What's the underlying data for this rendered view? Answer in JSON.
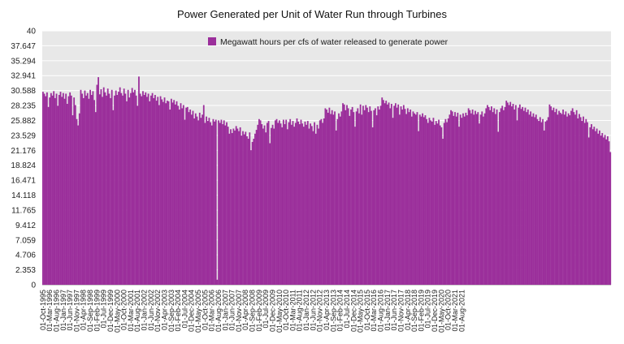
{
  "chart_data": {
    "type": "bar",
    "title": "Power Generated per Unit of Water Run through Turbines",
    "legend": {
      "label": "Megawatt hours per cfs of water released to generate power",
      "placement": "top-center"
    },
    "colors": {
      "bar": "#9b2f9b",
      "plot_background": "#e8e8e8",
      "grid": "#ffffff"
    },
    "grid": true,
    "ylim": [
      0,
      40
    ],
    "yticks": [
      "0",
      "2.353",
      "4.706",
      "7.059",
      "9.412",
      "11.765",
      "14.118",
      "16.471",
      "18.824",
      "21.176",
      "23.529",
      "25.882",
      "28.235",
      "30.588",
      "32.941",
      "35.294",
      "37.647",
      "40"
    ],
    "xticks": [
      "01-Oct-1995",
      "01-Mar-1996",
      "01-Aug-1996",
      "01-Jan-1997",
      "01-Jun-1997",
      "01-Nov-1997",
      "01-Apr-1998",
      "01-Sep-1998",
      "01-Feb-1999",
      "01-Jul-1999",
      "01-Dec-1999",
      "01-May-2000",
      "01-Oct-2000",
      "01-Mar-2001",
      "01-Aug-2001",
      "01-Jan-2002",
      "01-Jun-2002",
      "01-Nov-2002",
      "01-Apr-2003",
      "01-Sep-2003",
      "01-Feb-2004",
      "01-Jul-2004",
      "01-Dec-2004",
      "01-May-2005",
      "01-Oct-2005",
      "01-Mar-2006",
      "01-Aug-2006",
      "01-Jan-2007",
      "01-Jun-2007",
      "01-Nov-2007",
      "01-Apr-2008",
      "01-Sep-2008",
      "01-Feb-2009",
      "01-Jul-2009",
      "01-Dec-2009",
      "01-May-2010",
      "01-Oct-2010",
      "01-Mar-2011",
      "01-Aug-2011",
      "01-Jan-2012",
      "01-Jun-2012",
      "01-Nov-2012",
      "01-Apr-2013",
      "01-Sep-2013",
      "01-Feb-2014",
      "01-Jul-2014",
      "01-Dec-2014",
      "01-May-2015",
      "01-Oct-2015",
      "01-Mar-2016",
      "01-Aug-2016",
      "01-Jan-2017",
      "01-Jun-2017",
      "01-Nov-2017",
      "01-Apr-2018",
      "01-Sep-2018",
      "01-Feb-2019",
      "01-Jul-2019",
      "01-Dec-2019",
      "01-May-2020",
      "01-Oct-2020",
      "01-Mar-2021",
      "01-Aug-2021"
    ],
    "x_start": "01-Oct-1995",
    "x_step_months": 1,
    "values": [
      30.4,
      30.1,
      29.7,
      30.3,
      28.0,
      29.5,
      30.2,
      29.8,
      30.5,
      29.4,
      30.1,
      28.2,
      29.9,
      30.4,
      29.6,
      30.2,
      29.3,
      30.1,
      28.5,
      29.7,
      30.3,
      29.8,
      26.7,
      29.5,
      28.3,
      26.1,
      25.1,
      27.0,
      30.7,
      30.1,
      29.4,
      30.6,
      29.8,
      30.2,
      29.3,
      30.7,
      29.9,
      30.5,
      29.1,
      27.2,
      31.5,
      32.7,
      30.0,
      30.8,
      29.6,
      31.1,
      30.3,
      29.8,
      30.9,
      30.1,
      29.4,
      30.7,
      27.5,
      29.8,
      30.6,
      29.9,
      30.4,
      31.1,
      30.2,
      29.8,
      30.9,
      30.1,
      28.9,
      30.7,
      29.5,
      30.2,
      31.0,
      30.3,
      30.7,
      29.8,
      28.2,
      32.8,
      30.1,
      29.7,
      30.5,
      29.9,
      30.3,
      29.6,
      30.1,
      28.9,
      29.8,
      30.2,
      29.4,
      29.9,
      29.0,
      29.6,
      28.3,
      29.7,
      29.2,
      28.8,
      29.5,
      28.6,
      29.0,
      28.9,
      27.6,
      29.3,
      28.7,
      29.1,
      28.4,
      28.9,
      28.2,
      27.6,
      28.6,
      27.8,
      28.3,
      26.0,
      27.9,
      28.0,
      27.2,
      27.6,
      26.8,
      27.4,
      26.2,
      27.0,
      26.5,
      25.9,
      27.1,
      26.3,
      26.8,
      28.3,
      25.5,
      26.5,
      25.8,
      26.3,
      25.6,
      25.1,
      26.1,
      25.7,
      26.0,
      0.8,
      25.9,
      25.5,
      26.0,
      25.3,
      25.9,
      25.1,
      25.6,
      24.9,
      23.8,
      24.5,
      23.9,
      24.6,
      24.3,
      25.0,
      24.6,
      24.2,
      24.8,
      23.5,
      24.2,
      23.7,
      24.1,
      23.4,
      23.0,
      24.0,
      21.2,
      22.5,
      23.0,
      23.8,
      24.4,
      25.2,
      26.1,
      25.9,
      25.3,
      24.6,
      25.1,
      24.0,
      25.5,
      25.8,
      22.3,
      24.7,
      25.2,
      24.6,
      25.9,
      26.1,
      25.5,
      25.9,
      25.4,
      24.8,
      26.0,
      25.3,
      26.0,
      24.5,
      25.6,
      26.1,
      25.2,
      25.8,
      24.9,
      25.5,
      26.2,
      25.7,
      25.3,
      26.0,
      25.4,
      24.9,
      25.7,
      25.2,
      25.8,
      24.6,
      25.4,
      25.0,
      24.2,
      25.6,
      23.8,
      25.2,
      24.6,
      25.9,
      26.1,
      25.5,
      26.2,
      27.8,
      27.6,
      27.1,
      27.9,
      26.9,
      27.5,
      26.8,
      27.3,
      24.3,
      26.1,
      27.0,
      26.5,
      27.3,
      28.6,
      28.4,
      27.5,
      28.3,
      27.8,
      26.6,
      27.6,
      28.0,
      27.2,
      24.9,
      27.3,
      27.8,
      27.0,
      28.4,
      26.8,
      28.2,
      27.5,
      28.3,
      27.9,
      27.2,
      28.1,
      27.4,
      24.8,
      27.5,
      27.8,
      26.7,
      28.1,
      27.6,
      28.2,
      29.5,
      29.1,
      28.6,
      29.0,
      28.4,
      28.7,
      27.8,
      28.5,
      26.3,
      28.2,
      28.6,
      27.9,
      28.4,
      26.8,
      28.1,
      27.6,
      28.3,
      27.7,
      26.9,
      27.8,
      27.2,
      27.6,
      26.5,
      27.3,
      27.0,
      26.8,
      27.2,
      24.2,
      26.8,
      26.5,
      27.0,
      26.4,
      26.7,
      26.1,
      25.5,
      26.3,
      25.9,
      25.7,
      26.3,
      25.2,
      25.8,
      25.4,
      26.0,
      25.1,
      24.8,
      23.0,
      25.5,
      26.1,
      25.6,
      26.2,
      26.8,
      27.5,
      27.3,
      26.6,
      27.2,
      26.5,
      27.1,
      24.9,
      26.8,
      26.3,
      27.0,
      26.5,
      27.1,
      26.7,
      27.8,
      27.5,
      27.0,
      27.6,
      26.8,
      27.4,
      26.9,
      27.2,
      25.4,
      26.8,
      27.3,
      26.5,
      27.0,
      27.8,
      28.3,
      28.0,
      27.5,
      28.1,
      27.2,
      27.8,
      26.9,
      27.6,
      24.1,
      27.2,
      27.8,
      28.2,
      27.5,
      28.0,
      29.0,
      28.7,
      28.3,
      28.8,
      28.1,
      28.5,
      27.6,
      28.3,
      25.9,
      27.9,
      28.4,
      27.7,
      28.0,
      27.4,
      27.9,
      27.2,
      27.6,
      26.8,
      27.3,
      26.5,
      27.0,
      26.4,
      26.8,
      26.1,
      25.8,
      26.4,
      25.6,
      26.1,
      24.3,
      25.7,
      25.9,
      26.4,
      28.4,
      28.1,
      27.5,
      27.9,
      27.2,
      27.7,
      26.8,
      27.4,
      27.1,
      26.9,
      27.6,
      26.8,
      27.3,
      26.5,
      27.0,
      26.7,
      27.4,
      27.8,
      27.2,
      26.8,
      27.5,
      26.2,
      26.9,
      26.4,
      25.8,
      26.5,
      25.5,
      26.1,
      25.6,
      23.2,
      24.8,
      25.3,
      24.5,
      24.9,
      24.2,
      24.6,
      23.8,
      24.3,
      23.5,
      23.9,
      23.2,
      23.6,
      22.9,
      23.4,
      22.6,
      20.9
    ]
  }
}
